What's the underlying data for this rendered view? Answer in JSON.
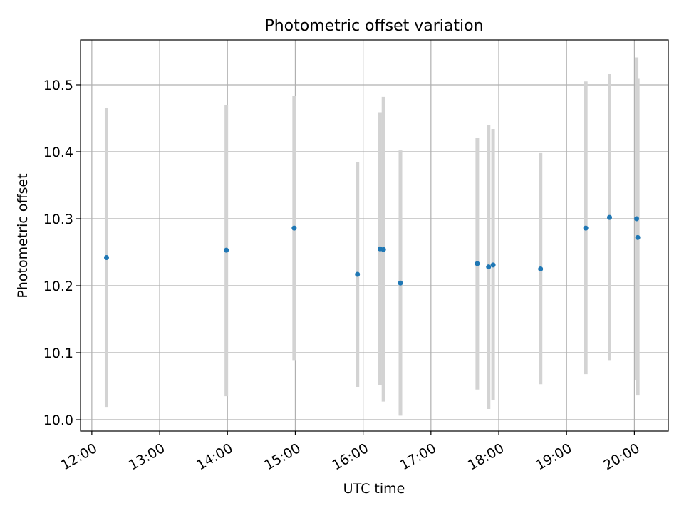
{
  "chart_data": {
    "type": "scatter",
    "title": "Photometric offset variation",
    "xlabel": "UTC time",
    "ylabel": "Photometric offset",
    "x_tick_labels": [
      "12:00",
      "13:00",
      "14:00",
      "15:00",
      "16:00",
      "17:00",
      "18:00",
      "19:00",
      "20:00"
    ],
    "y_tick_labels": [
      "10.0",
      "10.1",
      "10.2",
      "10.3",
      "10.4",
      "10.5"
    ],
    "xlim": [
      "11:50",
      "20:30"
    ],
    "ylim": [
      9.983,
      10.567
    ],
    "grid": true,
    "point_color": "#1f77b4",
    "errorbar_color": "#d3d3d3",
    "points": [
      {
        "x": "12:13",
        "y": 10.242,
        "ylow": 10.019,
        "yhigh": 10.466
      },
      {
        "x": "13:59",
        "y": 10.253,
        "ylow": 10.035,
        "yhigh": 10.47
      },
      {
        "x": "14:59",
        "y": 10.286,
        "ylow": 10.089,
        "yhigh": 10.483
      },
      {
        "x": "15:55",
        "y": 10.217,
        "ylow": 10.049,
        "yhigh": 10.385
      },
      {
        "x": "16:15",
        "y": 10.255,
        "ylow": 10.052,
        "yhigh": 10.459
      },
      {
        "x": "16:18",
        "y": 10.254,
        "ylow": 10.027,
        "yhigh": 10.482
      },
      {
        "x": "16:33",
        "y": 10.204,
        "ylow": 10.006,
        "yhigh": 10.402
      },
      {
        "x": "17:41",
        "y": 10.233,
        "ylow": 10.045,
        "yhigh": 10.421
      },
      {
        "x": "17:51",
        "y": 10.228,
        "ylow": 10.016,
        "yhigh": 10.44
      },
      {
        "x": "17:55",
        "y": 10.231,
        "ylow": 10.029,
        "yhigh": 10.434
      },
      {
        "x": "18:37",
        "y": 10.225,
        "ylow": 10.053,
        "yhigh": 10.398
      },
      {
        "x": "19:17",
        "y": 10.286,
        "ylow": 10.068,
        "yhigh": 10.505
      },
      {
        "x": "19:38",
        "y": 10.302,
        "ylow": 10.089,
        "yhigh": 10.516
      },
      {
        "x": "20:02",
        "y": 10.3,
        "ylow": 10.059,
        "yhigh": 10.541
      },
      {
        "x": "20:03",
        "y": 10.272,
        "ylow": 10.036,
        "yhigh": 10.509
      }
    ]
  }
}
